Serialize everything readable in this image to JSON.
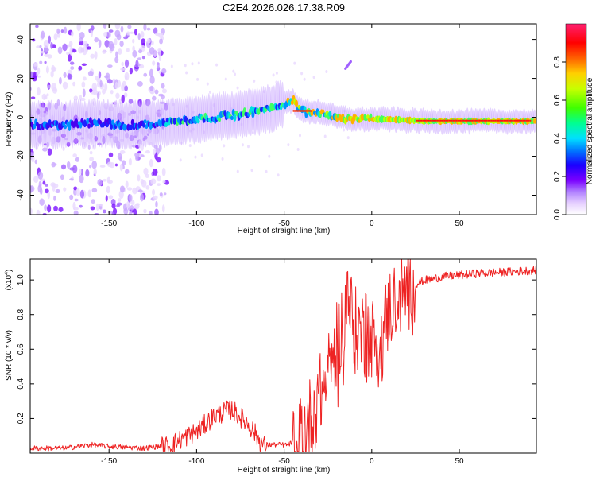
{
  "title": "C2E4.2026.026.17.38.R09",
  "chart_data": [
    {
      "type": "heatmap",
      "xlabel": "Height of straight line (km)",
      "ylabel": "Frequency (Hz)",
      "xlim": [
        -195,
        94
      ],
      "ylim": [
        -50,
        48
      ],
      "xticks": [
        -150,
        -100,
        -50,
        0,
        50
      ],
      "yticks": [
        -40,
        -20,
        0,
        20,
        40
      ],
      "track": {
        "x": [
          -195,
          -180,
          -160,
          -140,
          -120,
          -100,
          -80,
          -60,
          -50,
          -45,
          -40,
          -30,
          -20,
          -10,
          0,
          10,
          30,
          60,
          94
        ],
        "frequency": [
          -4,
          -4,
          -3,
          -4,
          -3,
          -1,
          1,
          4,
          7,
          9,
          3,
          3,
          0,
          -1,
          -1,
          -1,
          -2,
          -2,
          -2
        ]
      },
      "colorbar": {
        "label": "Normalized spectral amplitude",
        "range": [
          0.0,
          1.0
        ],
        "ticks": [
          0.0,
          0.2,
          0.4,
          0.6,
          0.8
        ],
        "tick_labels": [
          "0.0",
          "0.2",
          "0.4",
          "0.6",
          "0.8"
        ],
        "colors": [
          "#ffffff",
          "#d8b8ff",
          "#8a2be2",
          "#4b00ff",
          "#0040ff",
          "#00c8ff",
          "#00ff80",
          "#80ff00",
          "#ffff00",
          "#ff8000",
          "#ff0000",
          "#ff3060"
        ]
      }
    },
    {
      "type": "line",
      "xlabel": "Height of straight line (km)",
      "ylabel": "SNR (10 * v/v)",
      "scale_label": "(x10",
      "scale_exp": "4",
      "scale_close": ")",
      "xlim": [
        -195,
        94
      ],
      "ylim": [
        0,
        1.12
      ],
      "xticks": [
        -150,
        -100,
        -50,
        0,
        50
      ],
      "yticks": [
        0.2,
        0.4,
        0.6,
        0.8,
        1.0
      ],
      "color": "#ee2222",
      "series": [
        {
          "name": "SNR",
          "x": [
            -195,
            -175,
            -160,
            -150,
            -130,
            -115,
            -110,
            -100,
            -90,
            -80,
            -70,
            -62,
            -55,
            -48,
            -42,
            -38,
            -32,
            -26,
            -20,
            -16,
            -14,
            -10,
            -5,
            0,
            5,
            8,
            12,
            18,
            25,
            30,
            40,
            60,
            80,
            94
          ],
          "y": [
            0.03,
            0.03,
            0.05,
            0.04,
            0.03,
            0.05,
            0.08,
            0.13,
            0.22,
            0.26,
            0.17,
            0.05,
            0.05,
            0.05,
            0.08,
            0.17,
            0.3,
            0.45,
            0.65,
            0.8,
            0.95,
            0.75,
            0.72,
            0.7,
            0.62,
            0.8,
            0.9,
            0.95,
            0.98,
            1.0,
            1.02,
            1.04,
            1.05,
            1.06
          ]
        }
      ]
    }
  ]
}
